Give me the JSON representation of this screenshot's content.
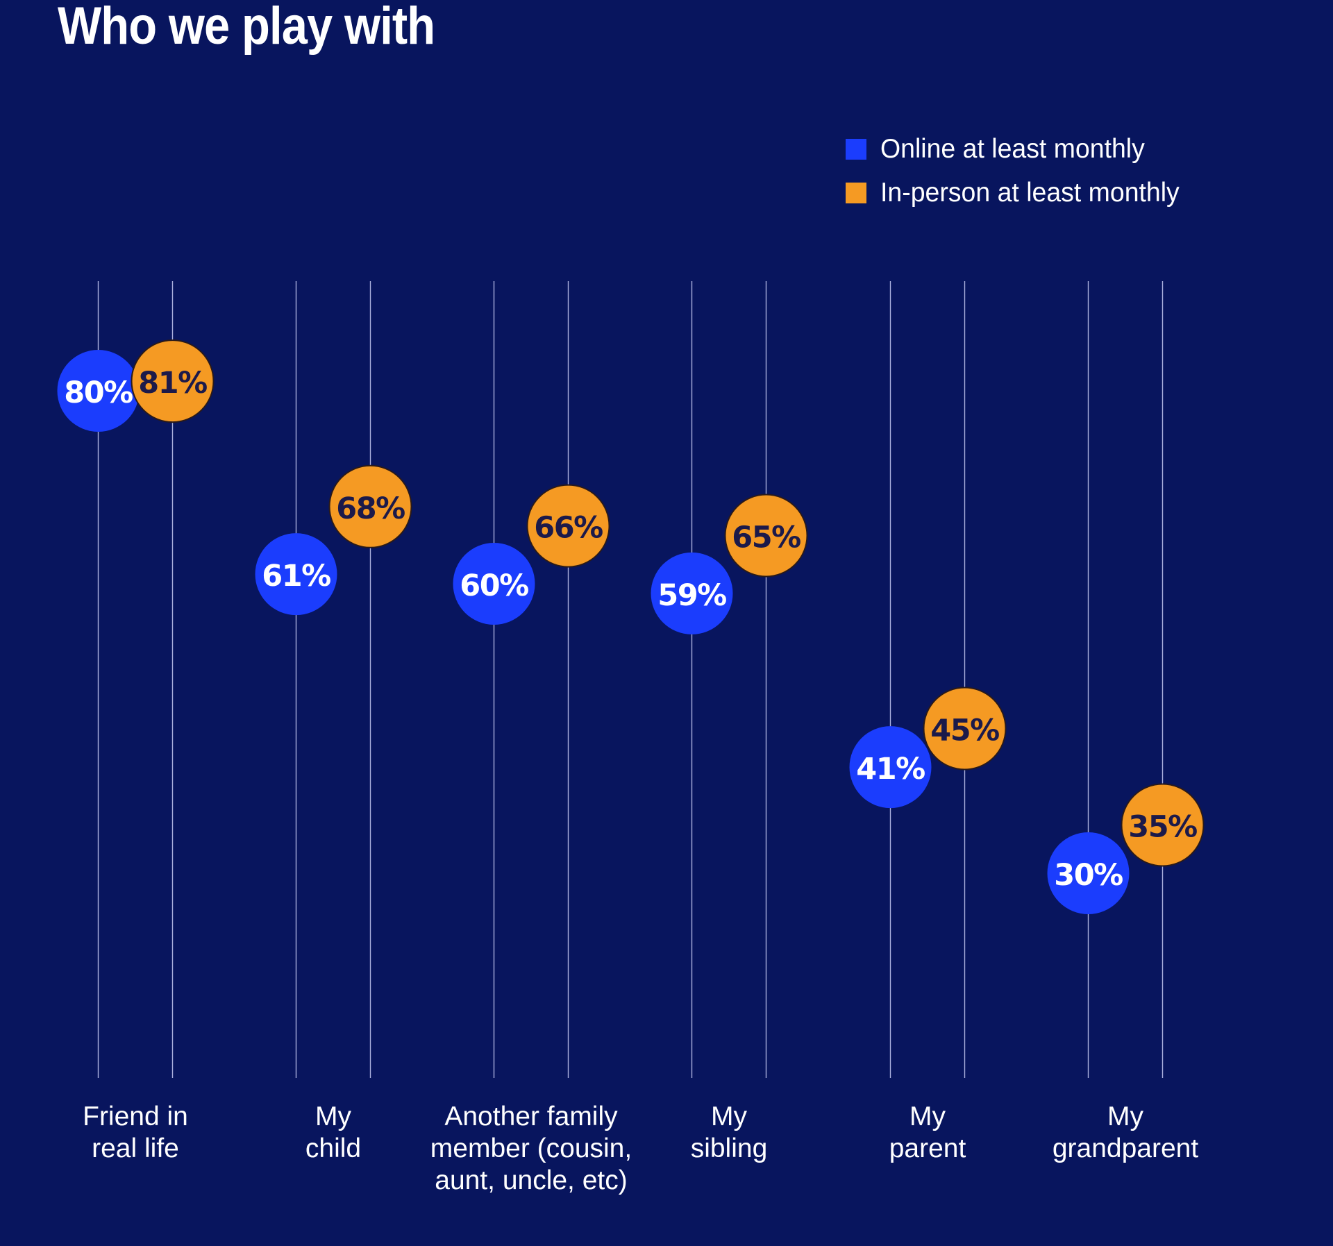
{
  "chart_data": {
    "type": "scatter",
    "title": "Who we play with",
    "xlabel": "",
    "ylabel": "",
    "ylim": [
      0,
      100
    ],
    "grid": false,
    "legend_position": "top-right",
    "categories": [
      [
        "Friend in",
        "real life"
      ],
      [
        "My",
        "child"
      ],
      [
        "Another family",
        "member (cousin,",
        "aunt, uncle, etc)"
      ],
      [
        "My",
        "sibling"
      ],
      [
        "My",
        "parent"
      ],
      [
        "My",
        "grandparent"
      ]
    ],
    "series": [
      {
        "name": "Online at least monthly",
        "color": "#1b3dfd",
        "text_color": "#ffffff",
        "values": [
          80,
          61,
          60,
          59,
          41,
          30
        ],
        "labels": [
          "80%",
          "61%",
          "60%",
          "59%",
          "41%",
          "30%"
        ]
      },
      {
        "name": "In-person at least monthly",
        "color": "#f59a23",
        "text_color": "#1c1a4a",
        "values": [
          81,
          68,
          66,
          65,
          45,
          35
        ],
        "labels": [
          "81%",
          "68%",
          "66%",
          "65%",
          "45%",
          "35%"
        ]
      }
    ]
  },
  "colors": {
    "background": "#08155e",
    "gridline": "#c9cdf5"
  }
}
